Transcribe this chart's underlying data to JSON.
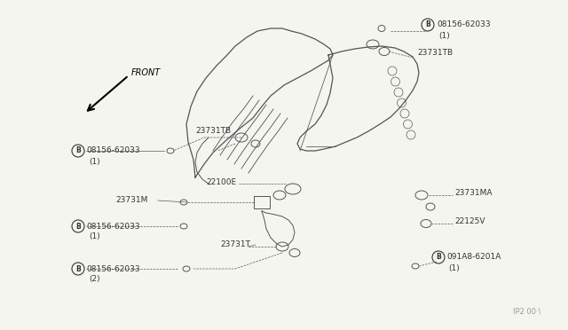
{
  "bg_color": "#f5f5f0",
  "fig_width": 6.4,
  "fig_height": 3.72,
  "dpi": 100,
  "line_color": "#555555",
  "text_color": "#333333",
  "font_size": 6.5,
  "watermark": "IP2 00·\\",
  "labels": {
    "top_right_bolt_num": "08156-62033",
    "top_right_bolt_sub": "(1)",
    "top_right_sensor": "23731TB",
    "left_upper_sensor": "23731TB",
    "left_upper_bolt_num": "08156-62033",
    "left_upper_bolt_sub": "(1)",
    "mid_label1": "22100E",
    "mid_label2": "23731M",
    "right_sensor1": "23731MA",
    "right_sensor2": "22125V",
    "left_mid_bolt_num": "08156-62033",
    "left_mid_bolt_sub": "(1)",
    "bot_sensor": "23731T",
    "left_bot_bolt_num": "08156-62033",
    "left_bot_bolt_sub": "(2)",
    "bot_right_bolt_num": "091A8-6201A",
    "bot_right_bolt_sub": "(1)"
  }
}
